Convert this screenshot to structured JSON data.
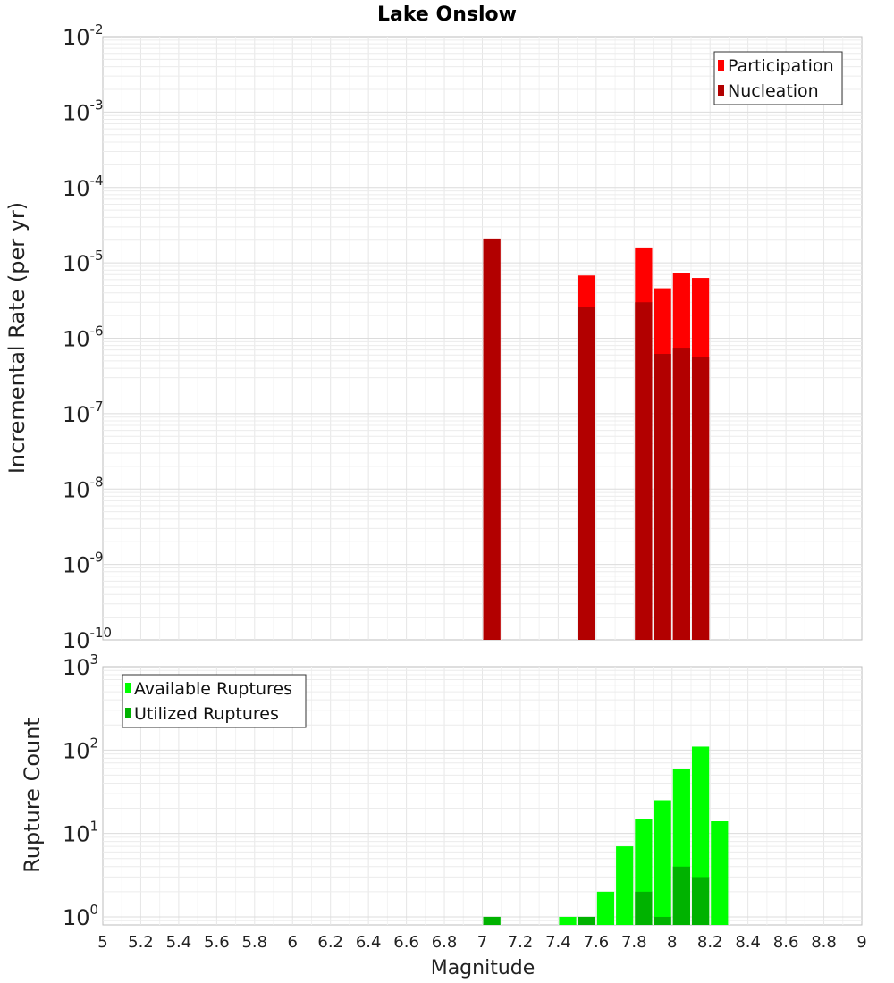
{
  "title": "Lake Onslow",
  "xlabel": "Magnitude",
  "chart_data": [
    {
      "type": "bar",
      "panel": "top",
      "ylabel": "Incremental Rate (per yr)",
      "yscale": "log",
      "ylim": [
        1e-10,
        0.01
      ],
      "xlim": [
        5,
        9
      ],
      "bar_width": 0.1,
      "y_tick_labels": [
        {
          "base": "10",
          "exp": "-10",
          "value": 1e-10
        },
        {
          "base": "10",
          "exp": "-9",
          "value": 1e-09
        },
        {
          "base": "10",
          "exp": "-8",
          "value": 1e-08
        },
        {
          "base": "10",
          "exp": "-7",
          "value": 1e-07
        },
        {
          "base": "10",
          "exp": "-6",
          "value": 1e-06
        },
        {
          "base": "10",
          "exp": "-5",
          "value": 1e-05
        },
        {
          "base": "10",
          "exp": "-4",
          "value": 0.0001
        },
        {
          "base": "10",
          "exp": "-3",
          "value": 0.001
        },
        {
          "base": "10",
          "exp": "-2",
          "value": 0.01
        }
      ],
      "legend_position": "top-right",
      "grid": true,
      "series": [
        {
          "name": "Participation",
          "color": "#ff0000",
          "x": [
            7.05,
            7.55,
            7.85,
            7.95,
            8.05,
            8.15
          ],
          "values": [
            2.1e-05,
            6.8e-06,
            1.6e-05,
            4.6e-06,
            7.3e-06,
            6.3e-06
          ]
        },
        {
          "name": "Nucleation",
          "color": "#b20000",
          "x": [
            7.05,
            7.55,
            7.85,
            7.95,
            8.05,
            8.15
          ],
          "values": [
            2.1e-05,
            2.6e-06,
            3e-06,
            6.2e-07,
            7.5e-07,
            5.7e-07
          ]
        }
      ]
    },
    {
      "type": "bar",
      "panel": "bottom",
      "ylabel": "Rupture Count",
      "yscale": "log",
      "ylim": [
        0.8,
        1000
      ],
      "xlim": [
        5,
        9
      ],
      "bar_width": 0.1,
      "y_tick_labels": [
        {
          "base": "10",
          "exp": "0",
          "value": 1
        },
        {
          "base": "10",
          "exp": "1",
          "value": 10
        },
        {
          "base": "10",
          "exp": "2",
          "value": 100
        },
        {
          "base": "10",
          "exp": "3",
          "value": 1000
        }
      ],
      "legend_position": "top-left",
      "grid": true,
      "series": [
        {
          "name": "Available Ruptures",
          "color": "#00ff00",
          "x": [
            7.05,
            7.45,
            7.55,
            7.65,
            7.75,
            7.85,
            7.95,
            8.05,
            8.15,
            8.25
          ],
          "values": [
            1,
            1,
            1,
            2,
            7,
            15,
            25,
            60,
            110,
            14
          ]
        },
        {
          "name": "Utilized Ruptures",
          "color": "#00b200",
          "x": [
            7.05,
            7.55,
            7.85,
            7.95,
            8.05,
            8.15
          ],
          "values": [
            1,
            1,
            2,
            1,
            4,
            3
          ]
        }
      ]
    }
  ],
  "x_ticks": [
    "5",
    "5.2",
    "5.4",
    "5.6",
    "5.8",
    "6",
    "6.2",
    "6.4",
    "6.6",
    "6.8",
    "7",
    "7.2",
    "7.4",
    "7.6",
    "7.8",
    "8",
    "8.2",
    "8.4",
    "8.6",
    "8.8",
    "9"
  ]
}
